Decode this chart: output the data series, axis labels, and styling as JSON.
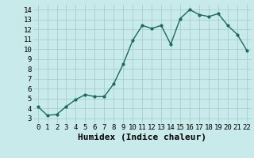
{
  "x": [
    0,
    1,
    2,
    3,
    4,
    5,
    6,
    7,
    8,
    9,
    10,
    11,
    12,
    13,
    14,
    15,
    16,
    17,
    18,
    19,
    20,
    21,
    22
  ],
  "y": [
    4.2,
    3.3,
    3.4,
    4.2,
    4.9,
    5.4,
    5.2,
    5.2,
    6.5,
    8.5,
    10.9,
    12.4,
    12.1,
    12.4,
    10.5,
    13.1,
    14.0,
    13.5,
    13.3,
    13.6,
    12.4,
    11.5,
    9.9
  ],
  "line_color": "#1a6b5a",
  "marker": "o",
  "marker_size": 2.0,
  "bg_color": "#c8eaea",
  "grid_color": "#a0c8c8",
  "xlabel": "Humidex (Indice chaleur)",
  "xlim": [
    -0.5,
    22.5
  ],
  "ylim": [
    2.5,
    14.5
  ],
  "yticks": [
    3,
    4,
    5,
    6,
    7,
    8,
    9,
    10,
    11,
    12,
    13,
    14
  ],
  "xticks": [
    0,
    1,
    2,
    3,
    4,
    5,
    6,
    7,
    8,
    9,
    10,
    11,
    12,
    13,
    14,
    15,
    16,
    17,
    18,
    19,
    20,
    21,
    22
  ],
  "tick_fontsize": 6.5,
  "xlabel_fontsize": 8,
  "line_width": 1.0
}
